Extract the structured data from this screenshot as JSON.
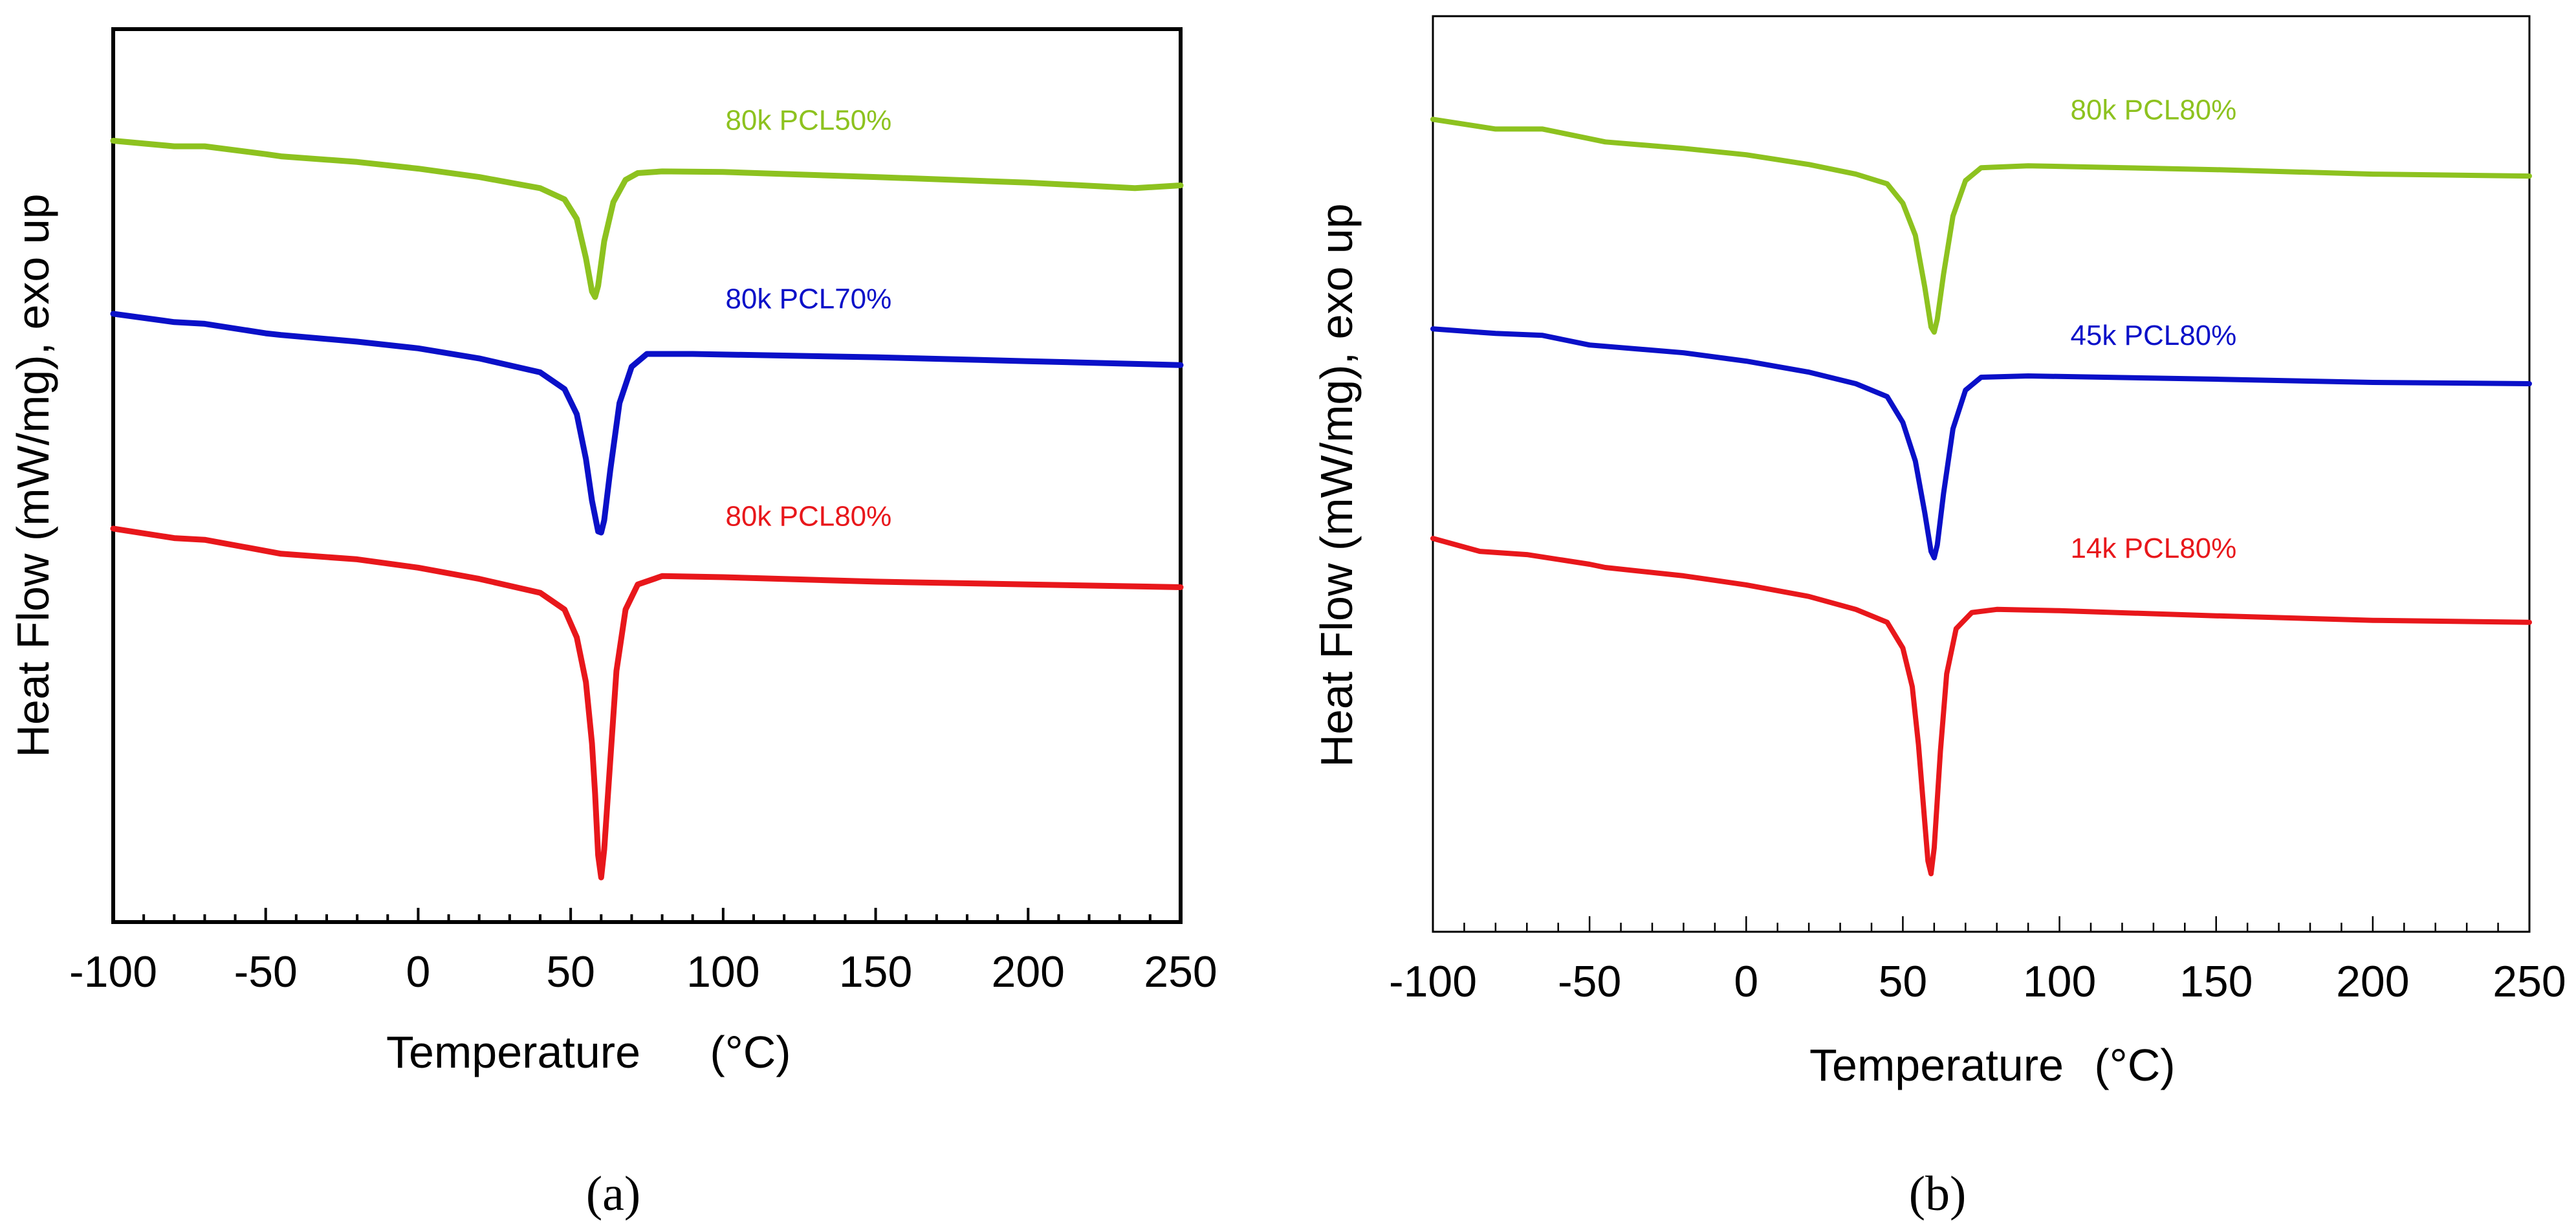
{
  "chart_data": [
    {
      "type": "line",
      "panel_label": "(a)",
      "xlabel": "Temperature",
      "xlabel_unit": "(°C)",
      "ylabel": "Heat Flow (mW/mg), exo up",
      "xlim": [
        -100,
        250
      ],
      "x_ticks": [
        -100,
        -50,
        0,
        50,
        100,
        150,
        200,
        250
      ],
      "y_ticks_shown": false,
      "series": [
        {
          "name": "80k PCL50%",
          "color": "#8dc21f",
          "label_at": [
            128,
            -2.3
          ],
          "points": [
            [
              -100,
              -2.5
            ],
            [
              -80,
              -2.6
            ],
            [
              -70,
              -2.6
            ],
            [
              -50,
              -2.74
            ],
            [
              -45,
              -2.78
            ],
            [
              -20,
              -2.88
            ],
            [
              0,
              -3.0
            ],
            [
              20,
              -3.15
            ],
            [
              40,
              -3.35
            ],
            [
              48,
              -3.55
            ],
            [
              52,
              -3.9
            ],
            [
              55,
              -4.6
            ],
            [
              57,
              -5.2
            ],
            [
              58,
              -5.3
            ],
            [
              59,
              -5.1
            ],
            [
              61,
              -4.3
            ],
            [
              64,
              -3.6
            ],
            [
              68,
              -3.2
            ],
            [
              72,
              -3.08
            ],
            [
              80,
              -3.05
            ],
            [
              100,
              -3.06
            ],
            [
              150,
              -3.15
            ],
            [
              200,
              -3.25
            ],
            [
              235,
              -3.35
            ],
            [
              250,
              -3.3
            ]
          ]
        },
        {
          "name": "80k PCL70%",
          "color": "#0a10c8",
          "label_at": [
            128,
            -5.5
          ],
          "points": [
            [
              -100,
              -5.6
            ],
            [
              -80,
              -5.75
            ],
            [
              -70,
              -5.78
            ],
            [
              -50,
              -5.95
            ],
            [
              -45,
              -5.98
            ],
            [
              -20,
              -6.1
            ],
            [
              0,
              -6.22
            ],
            [
              20,
              -6.4
            ],
            [
              40,
              -6.65
            ],
            [
              48,
              -6.95
            ],
            [
              52,
              -7.4
            ],
            [
              55,
              -8.2
            ],
            [
              57,
              -8.95
            ],
            [
              59,
              -9.5
            ],
            [
              60,
              -9.52
            ],
            [
              61,
              -9.3
            ],
            [
              63,
              -8.4
            ],
            [
              66,
              -7.2
            ],
            [
              70,
              -6.55
            ],
            [
              75,
              -6.32
            ],
            [
              90,
              -6.32
            ],
            [
              150,
              -6.38
            ],
            [
              200,
              -6.45
            ],
            [
              250,
              -6.52
            ]
          ]
        },
        {
          "name": "80k PCL80%",
          "color": "#e8171b",
          "label_at": [
            128,
            -9.4
          ],
          "points": [
            [
              -100,
              -9.45
            ],
            [
              -80,
              -9.62
            ],
            [
              -70,
              -9.65
            ],
            [
              -50,
              -9.85
            ],
            [
              -45,
              -9.9
            ],
            [
              -20,
              -10.0
            ],
            [
              0,
              -10.15
            ],
            [
              20,
              -10.35
            ],
            [
              40,
              -10.6
            ],
            [
              48,
              -10.9
            ],
            [
              52,
              -11.4
            ],
            [
              55,
              -12.2
            ],
            [
              57,
              -13.3
            ],
            [
              58,
              -14.2
            ],
            [
              59,
              -15.3
            ],
            [
              60,
              -15.7
            ],
            [
              61,
              -15.2
            ],
            [
              63,
              -13.6
            ],
            [
              65,
              -12.0
            ],
            [
              68,
              -10.9
            ],
            [
              72,
              -10.45
            ],
            [
              80,
              -10.3
            ],
            [
              100,
              -10.32
            ],
            [
              150,
              -10.4
            ],
            [
              200,
              -10.45
            ],
            [
              250,
              -10.5
            ]
          ]
        }
      ]
    },
    {
      "type": "line",
      "panel_label": "(b)",
      "xlabel": "Temperature",
      "xlabel_unit": "(°C)",
      "ylabel": "Heat Flow (mW/mg), exo up",
      "xlim": [
        -100,
        250
      ],
      "x_ticks": [
        -100,
        -50,
        0,
        50,
        100,
        150,
        200,
        250
      ],
      "y_ticks_shown": false,
      "series": [
        {
          "name": "80k PCL80%",
          "color": "#8dc21f",
          "label_at": [
            130,
            -2.6
          ],
          "points": [
            [
              -100,
              -2.6
            ],
            [
              -80,
              -2.75
            ],
            [
              -65,
              -2.75
            ],
            [
              -50,
              -2.9
            ],
            [
              -45,
              -2.95
            ],
            [
              -20,
              -3.05
            ],
            [
              0,
              -3.15
            ],
            [
              20,
              -3.3
            ],
            [
              35,
              -3.45
            ],
            [
              45,
              -3.6
            ],
            [
              50,
              -3.9
            ],
            [
              54,
              -4.4
            ],
            [
              57,
              -5.2
            ],
            [
              59,
              -5.82
            ],
            [
              60,
              -5.9
            ],
            [
              61,
              -5.7
            ],
            [
              63,
              -5.0
            ],
            [
              66,
              -4.1
            ],
            [
              70,
              -3.55
            ],
            [
              75,
              -3.35
            ],
            [
              90,
              -3.32
            ],
            [
              150,
              -3.38
            ],
            [
              200,
              -3.45
            ],
            [
              250,
              -3.48
            ]
          ]
        },
        {
          "name": "45k PCL80%",
          "color": "#0a10c8",
          "label_at": [
            130,
            -6.1
          ],
          "points": [
            [
              -100,
              -5.85
            ],
            [
              -80,
              -5.92
            ],
            [
              -65,
              -5.95
            ],
            [
              -50,
              -6.1
            ],
            [
              -45,
              -6.12
            ],
            [
              -20,
              -6.22
            ],
            [
              0,
              -6.35
            ],
            [
              20,
              -6.52
            ],
            [
              35,
              -6.7
            ],
            [
              45,
              -6.9
            ],
            [
              50,
              -7.3
            ],
            [
              54,
              -7.9
            ],
            [
              57,
              -8.7
            ],
            [
              59,
              -9.3
            ],
            [
              60,
              -9.4
            ],
            [
              61,
              -9.2
            ],
            [
              63,
              -8.4
            ],
            [
              66,
              -7.4
            ],
            [
              70,
              -6.8
            ],
            [
              75,
              -6.6
            ],
            [
              90,
              -6.58
            ],
            [
              150,
              -6.63
            ],
            [
              200,
              -6.68
            ],
            [
              250,
              -6.7
            ]
          ]
        },
        {
          "name": "14k PCL80%",
          "color": "#e8171b",
          "label_at": [
            130,
            -9.4
          ],
          "points": [
            [
              -100,
              -9.1
            ],
            [
              -85,
              -9.3
            ],
            [
              -70,
              -9.35
            ],
            [
              -50,
              -9.5
            ],
            [
              -45,
              -9.55
            ],
            [
              -20,
              -9.68
            ],
            [
              0,
              -9.82
            ],
            [
              20,
              -10.0
            ],
            [
              35,
              -10.2
            ],
            [
              45,
              -10.4
            ],
            [
              50,
              -10.8
            ],
            [
              53,
              -11.4
            ],
            [
              55,
              -12.3
            ],
            [
              57,
              -13.5
            ],
            [
              58,
              -14.1
            ],
            [
              59,
              -14.3
            ],
            [
              60,
              -13.9
            ],
            [
              62,
              -12.4
            ],
            [
              64,
              -11.2
            ],
            [
              67,
              -10.5
            ],
            [
              72,
              -10.25
            ],
            [
              80,
              -10.2
            ],
            [
              100,
              -10.22
            ],
            [
              150,
              -10.3
            ],
            [
              200,
              -10.37
            ],
            [
              250,
              -10.4
            ]
          ]
        }
      ]
    }
  ]
}
